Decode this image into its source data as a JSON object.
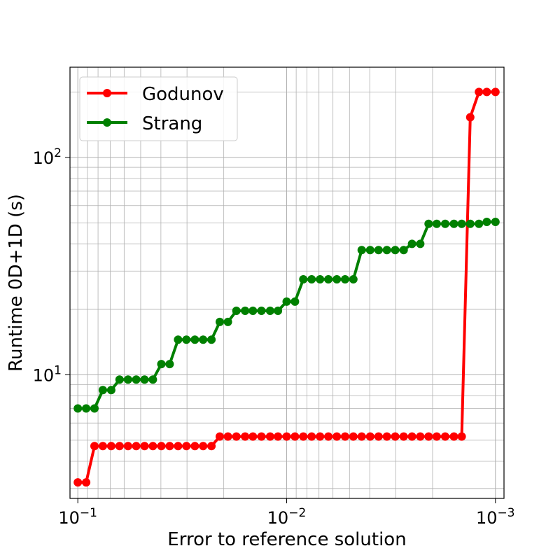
{
  "chart_data": {
    "type": "line",
    "xlabel": "Error to reference solution",
    "ylabel": "Runtime 0D+1D (s)",
    "x_scale": "log",
    "y_scale": "log",
    "x_reversed": true,
    "xlim": [
      0.109,
      0.00091
    ],
    "ylim": [
      2.7,
      260
    ],
    "grid": true,
    "grid_minor": true,
    "legend_position": "top-left",
    "x_ticks": [
      {
        "value": 0.1,
        "base": "10",
        "exp": "−1"
      },
      {
        "value": 0.01,
        "base": "10",
        "exp": "−2"
      },
      {
        "value": 0.001,
        "base": "10",
        "exp": "−3"
      }
    ],
    "y_ticks": [
      {
        "value": 10,
        "base": "10",
        "exp": "1"
      },
      {
        "value": 100,
        "base": "10",
        "exp": "2"
      }
    ],
    "x": [
      0.1,
      0.0912,
      0.0832,
      0.0759,
      0.0692,
      0.0631,
      0.0575,
      0.0525,
      0.0479,
      0.0437,
      0.0398,
      0.0363,
      0.0331,
      0.0302,
      0.0275,
      0.0251,
      0.0229,
      0.0209,
      0.0191,
      0.0174,
      0.0158,
      0.0145,
      0.0132,
      0.012,
      0.011,
      0.01,
      0.00912,
      0.00832,
      0.00759,
      0.00692,
      0.00631,
      0.00575,
      0.00525,
      0.00479,
      0.00437,
      0.00398,
      0.00363,
      0.00331,
      0.00302,
      0.00275,
      0.00251,
      0.00229,
      0.00209,
      0.00191,
      0.00174,
      0.00158,
      0.00145,
      0.00132,
      0.0012,
      0.0011,
      0.001
    ],
    "series": [
      {
        "name": "Godunov",
        "color": "#ff0000",
        "values": [
          3.2,
          3.2,
          4.7,
          4.7,
          4.7,
          4.7,
          4.7,
          4.7,
          4.7,
          4.7,
          4.7,
          4.7,
          4.7,
          4.7,
          4.7,
          4.7,
          4.7,
          5.2,
          5.2,
          5.2,
          5.2,
          5.2,
          5.2,
          5.2,
          5.2,
          5.2,
          5.2,
          5.2,
          5.2,
          5.2,
          5.2,
          5.2,
          5.2,
          5.2,
          5.2,
          5.2,
          5.2,
          5.2,
          5.2,
          5.2,
          5.2,
          5.2,
          5.2,
          5.2,
          5.2,
          5.2,
          5.2,
          153,
          200,
          200,
          200
        ]
      },
      {
        "name": "Strang",
        "color": "#008000",
        "values": [
          7.0,
          7.0,
          7.0,
          8.5,
          8.5,
          9.5,
          9.5,
          9.5,
          9.5,
          9.5,
          11.2,
          11.2,
          14.5,
          14.5,
          14.5,
          14.5,
          14.5,
          17.5,
          17.5,
          19.7,
          19.7,
          19.7,
          19.7,
          19.7,
          19.7,
          21.7,
          21.7,
          27.5,
          27.5,
          27.5,
          27.5,
          27.5,
          27.5,
          27.5,
          37.5,
          37.5,
          37.5,
          37.5,
          37.5,
          37.5,
          40.0,
          40.0,
          49.5,
          49.5,
          49.5,
          49.5,
          49.5,
          49.5,
          49.5,
          50.5,
          50.5
        ]
      }
    ]
  }
}
